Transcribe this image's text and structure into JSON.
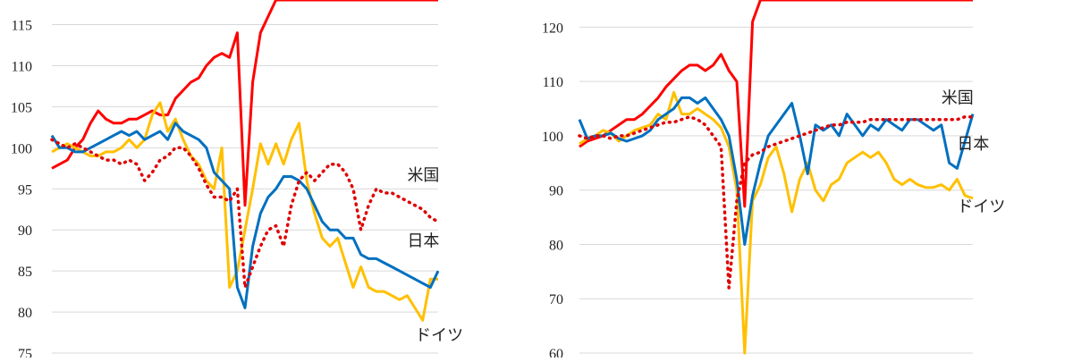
{
  "chart_data": [
    {
      "type": "line",
      "ylim": [
        75,
        118
      ],
      "yticks": [
        75,
        80,
        85,
        90,
        95,
        100,
        105,
        110,
        115
      ],
      "grid": true,
      "x": [
        0,
        2,
        4,
        6,
        8,
        10,
        12,
        14,
        16,
        18,
        20,
        22,
        24,
        26,
        28,
        30,
        32,
        34,
        36,
        38,
        40,
        42,
        44,
        46,
        48,
        50,
        52,
        54,
        56,
        58,
        60,
        62,
        64,
        66,
        68,
        70,
        72,
        74,
        76,
        78,
        80,
        82,
        84,
        86,
        88,
        90,
        92,
        94,
        96,
        98,
        100
      ],
      "series": [
        {
          "name": "米国",
          "color": "#e00000",
          "style": "dotted",
          "values": [
            101,
            100.5,
            100,
            100.5,
            100,
            99.5,
            99,
            98.5,
            98.5,
            98,
            98.5,
            98,
            96,
            97,
            98.5,
            99,
            100,
            100,
            99,
            97.5,
            95.5,
            94,
            94,
            93.5,
            95,
            83,
            85.5,
            88,
            90,
            90.5,
            88,
            93,
            96,
            97,
            96,
            97,
            98,
            98,
            97,
            95,
            90,
            93,
            95,
            94.5,
            94.5,
            94,
            93.5,
            93,
            92.5,
            91.5,
            91
          ]
        },
        {
          "name": "日本",
          "color": "#0070c0",
          "style": "solid",
          "values": [
            101.5,
            100,
            100,
            99.5,
            99.5,
            100,
            100.5,
            101,
            101.5,
            102,
            101.5,
            102,
            101,
            101.5,
            102,
            101,
            103,
            102,
            101.5,
            101,
            100,
            97,
            96,
            95,
            83,
            80.5,
            88,
            92,
            94,
            95,
            96.5,
            96.5,
            96,
            95,
            93,
            91,
            90,
            90,
            89,
            89,
            87,
            86.5,
            86.5,
            86,
            85.5,
            85,
            84.5,
            84,
            83.5,
            83,
            85
          ]
        },
        {
          "name": "ドイツ",
          "color": "#ffc000",
          "style": "solid",
          "values": [
            99.5,
            100,
            100.5,
            100,
            99.5,
            99,
            99,
            99.5,
            99.5,
            100,
            101,
            100,
            101,
            104,
            105.5,
            102,
            103.5,
            101,
            99,
            98,
            96,
            95,
            100,
            83,
            85,
            90,
            95,
            100.5,
            98,
            100.5,
            98,
            101,
            103,
            96,
            92,
            89,
            88,
            89,
            86,
            83,
            85.5,
            83,
            82.5,
            82.5,
            82,
            81.5,
            82,
            80.5,
            79,
            84,
            84
          ]
        },
        {
          "name": "",
          "color": "#ff0000",
          "style": "solid",
          "values": [
            97.5,
            98,
            98.5,
            100,
            101,
            103,
            104.5,
            103.5,
            103,
            103,
            103.5,
            103.5,
            104,
            104.5,
            104,
            104,
            106,
            107,
            108,
            108.5,
            110,
            111,
            111.5,
            111,
            114,
            93,
            108,
            114,
            116,
            118,
            118,
            118,
            118,
            118,
            118,
            118,
            118,
            118,
            118,
            118,
            118,
            118,
            118,
            118,
            118,
            118,
            118,
            118,
            118,
            118,
            118
          ]
        }
      ],
      "labels": [
        {
          "series": "米国",
          "text": "米国",
          "at_x": 92,
          "at_y": 96
        },
        {
          "series": "日本",
          "text": "日本",
          "at_x": 92,
          "at_y": 88
        },
        {
          "series": "ドイツ",
          "text": "ドイツ",
          "at_x": 94,
          "at_y": 76.5
        }
      ]
    },
    {
      "type": "line",
      "ylim": [
        60,
        125
      ],
      "yticks": [
        60,
        70,
        80,
        90,
        100,
        110,
        120
      ],
      "grid": true,
      "x": [
        0,
        2,
        4,
        6,
        8,
        10,
        12,
        14,
        16,
        18,
        20,
        22,
        24,
        26,
        28,
        30,
        32,
        34,
        36,
        38,
        40,
        42,
        44,
        46,
        48,
        50,
        52,
        54,
        56,
        58,
        60,
        62,
        64,
        66,
        68,
        70,
        72,
        74,
        76,
        78,
        80,
        82,
        84,
        86,
        88,
        90,
        92,
        94,
        96,
        98,
        100
      ],
      "series": [
        {
          "name": "米国",
          "color": "#e00000",
          "style": "dotted",
          "values": [
            100,
            99.5,
            100,
            100,
            99.5,
            100,
            100,
            100.5,
            101,
            101.5,
            102,
            102.5,
            102.5,
            103,
            103.5,
            103,
            102,
            100,
            98,
            72,
            88,
            95,
            96.5,
            97,
            98,
            98.5,
            99,
            99.5,
            100,
            100.5,
            101,
            101.5,
            102,
            102,
            102.5,
            102.5,
            102.5,
            103,
            103,
            103,
            103,
            103,
            103,
            103,
            103,
            103,
            103,
            103,
            103,
            103.5,
            103.5
          ]
        },
        {
          "name": "日本",
          "color": "#0070c0",
          "style": "solid",
          "values": [
            103,
            99.5,
            100,
            100,
            100.5,
            99.5,
            99,
            99.5,
            100,
            101,
            103,
            104,
            105,
            107,
            107,
            106,
            107,
            105,
            103,
            100,
            92,
            80,
            89,
            95,
            100,
            102,
            104,
            106,
            100,
            93,
            102,
            101,
            102,
            100,
            104,
            102,
            100,
            102,
            101,
            103,
            102,
            101,
            103,
            103,
            102,
            101,
            102,
            95,
            94,
            99,
            104
          ]
        },
        {
          "name": "ドイツ",
          "color": "#ffc000",
          "style": "solid",
          "values": [
            98.5,
            99.5,
            100,
            101,
            100.5,
            99,
            100,
            101,
            101.5,
            102,
            104,
            103,
            108,
            104,
            104,
            105,
            104,
            103,
            101.5,
            98,
            90,
            60,
            88,
            91,
            96,
            98,
            93,
            86,
            92,
            95,
            90,
            88,
            91,
            92,
            95,
            96,
            97,
            96,
            97,
            95,
            92,
            91,
            92,
            91,
            90.5,
            90.5,
            91,
            90,
            92,
            89,
            88.5
          ]
        },
        {
          "name": "",
          "color": "#ff0000",
          "style": "solid",
          "values": [
            98,
            99,
            99.5,
            100,
            101,
            102,
            103,
            103,
            104,
            105.5,
            107,
            109,
            110.5,
            112,
            113,
            113,
            112,
            113,
            115,
            112,
            110,
            87,
            121,
            125,
            125,
            125,
            125,
            125,
            125,
            125,
            125,
            125,
            125,
            125,
            125,
            125,
            125,
            125,
            125,
            125,
            125,
            125,
            125,
            125,
            125,
            125,
            125,
            125,
            125,
            125,
            125
          ]
        }
      ],
      "labels": [
        {
          "series": "米国",
          "text": "米国",
          "at_x": 92,
          "at_y": 106
        },
        {
          "series": "日本",
          "text": "日本",
          "at_x": 96,
          "at_y": 97.5
        },
        {
          "series": "ドイツ",
          "text": "ドイツ",
          "at_x": 96,
          "at_y": 86
        }
      ]
    }
  ]
}
